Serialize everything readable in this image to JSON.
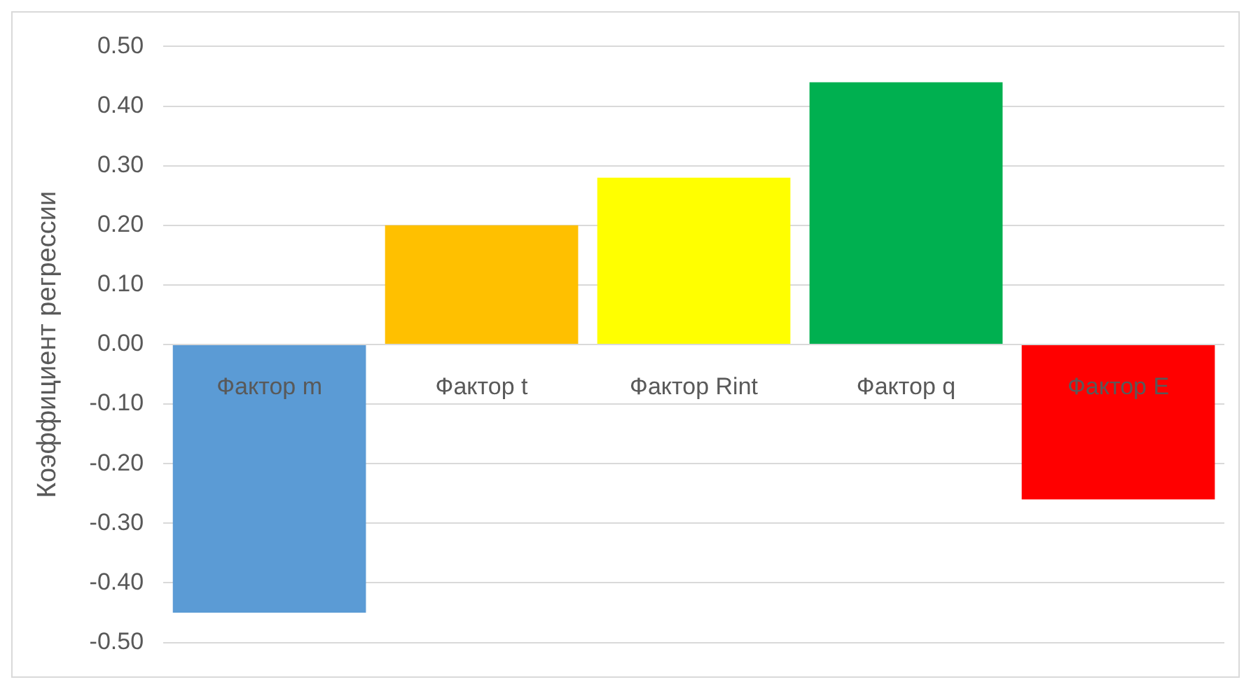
{
  "chart_data": {
    "type": "bar",
    "ylabel": "Коэффициент регрессии",
    "categories": [
      "Фактор m",
      "Фактор t",
      "Фактор Rint",
      "Фактор q",
      "Фактор E"
    ],
    "values": [
      -0.45,
      0.2,
      0.28,
      0.44,
      -0.26
    ],
    "colors": [
      "#5b9bd5",
      "#ffc000",
      "#ffff00",
      "#00b050",
      "#ff0000"
    ],
    "ylim": [
      -0.5,
      0.5
    ],
    "yticks": [
      {
        "value": -0.5,
        "label": "-0.50"
      },
      {
        "value": -0.4,
        "label": "-0.40"
      },
      {
        "value": -0.3,
        "label": "-0.30"
      },
      {
        "value": -0.2,
        "label": "-0.20"
      },
      {
        "value": -0.1,
        "label": "-0.10"
      },
      {
        "value": 0,
        "label": "0.00"
      },
      {
        "value": 0.1,
        "label": "0.10"
      },
      {
        "value": 0.2,
        "label": "0.20"
      },
      {
        "value": 0.3,
        "label": "0.30"
      },
      {
        "value": 0.4,
        "label": "0.40"
      },
      {
        "value": 0.5,
        "label": "0.50"
      }
    ],
    "grid": "y"
  }
}
